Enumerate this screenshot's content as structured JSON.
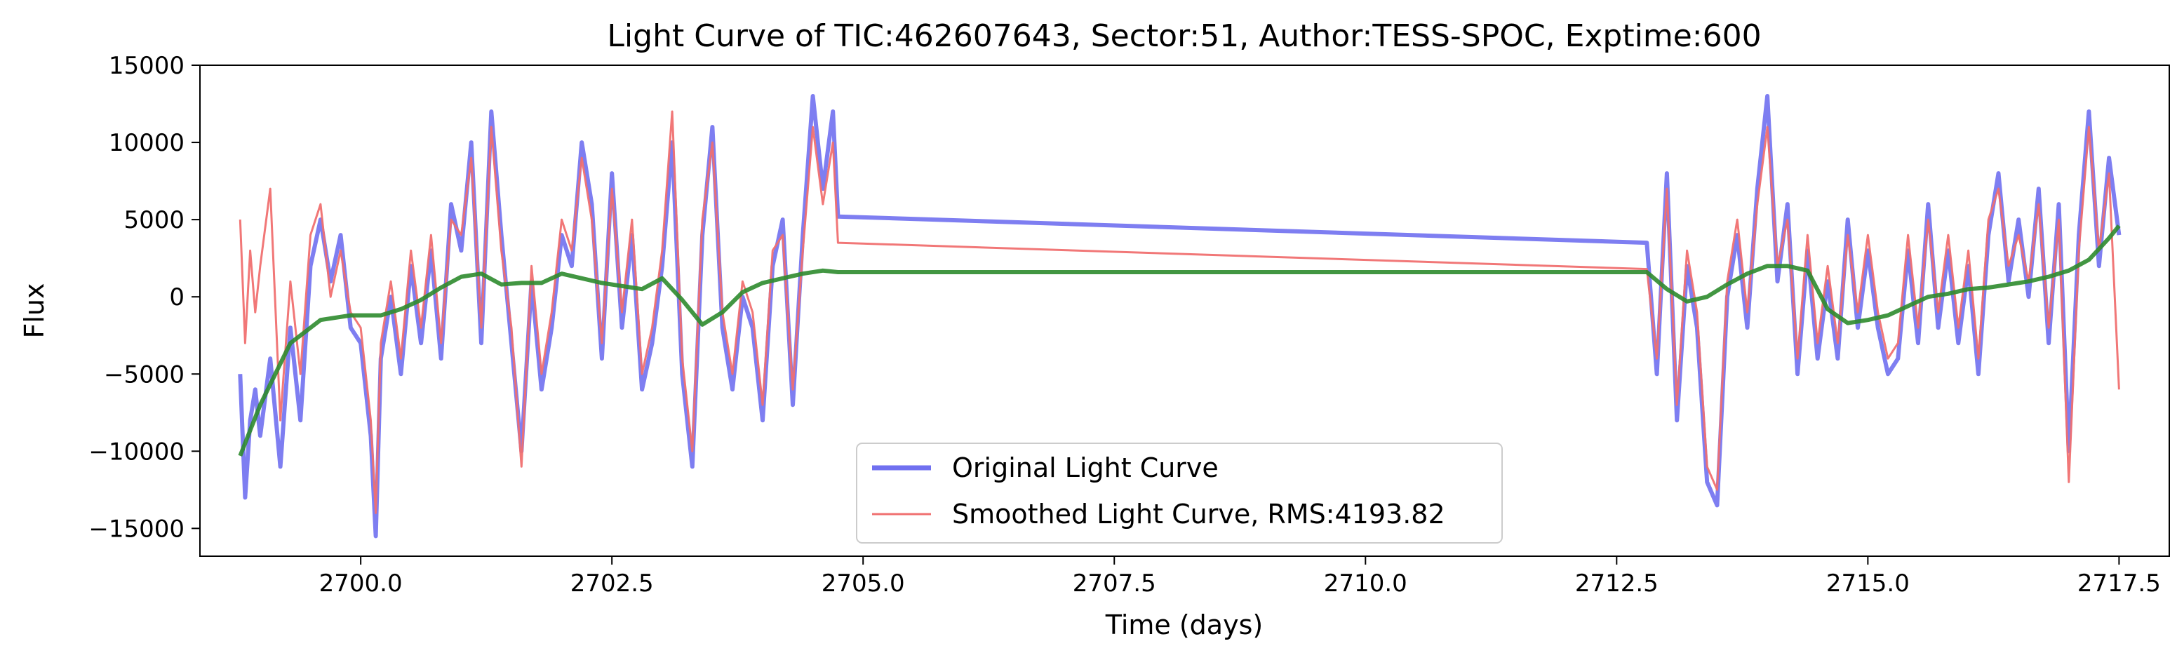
{
  "chart_data": {
    "type": "line",
    "title": "Light Curve of TIC:462607643, Sector:51, Author:TESS-SPOC, Exptime:600",
    "xlabel": "Time (days)",
    "ylabel": "Flux",
    "xlim": [
      2698.4,
      2718.0
    ],
    "ylim": [
      -16800,
      15000
    ],
    "xticks": [
      2700.0,
      2702.5,
      2705.0,
      2707.5,
      2710.0,
      2712.5,
      2715.0,
      2717.5
    ],
    "xtick_labels": [
      "2700.0",
      "2702.5",
      "2705.0",
      "2707.5",
      "2710.0",
      "2712.5",
      "2715.0",
      "2717.5"
    ],
    "yticks": [
      -15000,
      -10000,
      -5000,
      0,
      5000,
      10000,
      15000
    ],
    "ytick_labels": [
      "−15000",
      "−10000",
      "−5000",
      "0",
      "5000",
      "10000",
      "15000"
    ],
    "grid": false,
    "legend": {
      "placement": "lower-center",
      "entries": [
        {
          "label": "Original Light Curve",
          "color": "#7070f0"
        },
        {
          "label": "Smoothed Light Curve, RMS:4193.82",
          "color": "#f07070"
        }
      ]
    },
    "series": [
      {
        "name": "Original Light Curve",
        "color": "#7070f0",
        "x": [
          2698.8,
          2698.85,
          2698.9,
          2698.95,
          2699.0,
          2699.1,
          2699.2,
          2699.3,
          2699.4,
          2699.5,
          2699.6,
          2699.7,
          2699.8,
          2699.9,
          2700.0,
          2700.1,
          2700.15,
          2700.2,
          2700.3,
          2700.4,
          2700.5,
          2700.6,
          2700.7,
          2700.8,
          2700.9,
          2701.0,
          2701.1,
          2701.2,
          2701.3,
          2701.4,
          2701.5,
          2701.6,
          2701.7,
          2701.8,
          2701.9,
          2702.0,
          2702.1,
          2702.2,
          2702.3,
          2702.4,
          2702.5,
          2702.6,
          2702.7,
          2702.8,
          2702.9,
          2703.0,
          2703.1,
          2703.2,
          2703.3,
          2703.4,
          2703.5,
          2703.6,
          2703.7,
          2703.8,
          2703.9,
          2704.0,
          2704.1,
          2704.2,
          2704.3,
          2704.4,
          2704.5,
          2704.6,
          2704.7,
          2704.75,
          2712.8,
          2712.9,
          2713.0,
          2713.1,
          2713.2,
          2713.3,
          2713.4,
          2713.5,
          2713.6,
          2713.7,
          2713.8,
          2713.9,
          2714.0,
          2714.1,
          2714.2,
          2714.3,
          2714.4,
          2714.5,
          2714.6,
          2714.7,
          2714.8,
          2714.9,
          2715.0,
          2715.1,
          2715.2,
          2715.3,
          2715.4,
          2715.5,
          2715.6,
          2715.7,
          2715.8,
          2715.9,
          2716.0,
          2716.1,
          2716.2,
          2716.3,
          2716.4,
          2716.5,
          2716.6,
          2716.7,
          2716.8,
          2716.9,
          2717.0,
          2717.1,
          2717.2,
          2717.3,
          2717.4,
          2717.5
        ],
        "y": [
          -5000,
          -13000,
          -8000,
          -6000,
          -9000,
          -4000,
          -11000,
          -2000,
          -8000,
          2000,
          5000,
          1000,
          4000,
          -2000,
          -3000,
          -9000,
          -15500,
          -4000,
          0,
          -5000,
          2000,
          -3000,
          3000,
          -4000,
          6000,
          3000,
          10000,
          -3000,
          12000,
          4000,
          -3000,
          -10000,
          1000,
          -6000,
          -2000,
          4000,
          2000,
          10000,
          6000,
          -4000,
          8000,
          -2000,
          4000,
          -6000,
          -3000,
          2000,
          10000,
          -5000,
          -11000,
          4000,
          11000,
          -2000,
          -6000,
          0,
          -2000,
          -8000,
          2000,
          5000,
          -7000,
          4000,
          13000,
          7000,
          12000,
          5200,
          3500,
          -5000,
          8000,
          -8000,
          2000,
          -2000,
          -12000,
          -13500,
          0,
          4000,
          -2000,
          7000,
          13000,
          1000,
          6000,
          -5000,
          3000,
          -4000,
          1000,
          -4000,
          5000,
          -2000,
          3000,
          -2000,
          -5000,
          -4000,
          3000,
          -3000,
          6000,
          -2000,
          3000,
          -3000,
          2000,
          -5000,
          4000,
          8000,
          1000,
          5000,
          0,
          7000,
          -3000,
          6000,
          -10000,
          4000,
          12000,
          2000,
          9000,
          4000
        ]
      },
      {
        "name": "Smoothed Light Curve, RMS:4193.82",
        "color": "#f07070",
        "x": [
          2698.8,
          2698.85,
          2698.9,
          2698.95,
          2699.0,
          2699.1,
          2699.2,
          2699.3,
          2699.4,
          2699.5,
          2699.6,
          2699.7,
          2699.8,
          2699.9,
          2700.0,
          2700.1,
          2700.15,
          2700.2,
          2700.3,
          2700.4,
          2700.5,
          2700.6,
          2700.7,
          2700.8,
          2700.9,
          2701.0,
          2701.1,
          2701.2,
          2701.3,
          2701.4,
          2701.5,
          2701.6,
          2701.7,
          2701.8,
          2701.9,
          2702.0,
          2702.1,
          2702.2,
          2702.3,
          2702.4,
          2702.5,
          2702.6,
          2702.7,
          2702.8,
          2702.9,
          2703.0,
          2703.1,
          2703.2,
          2703.3,
          2703.4,
          2703.5,
          2703.6,
          2703.7,
          2703.8,
          2703.9,
          2704.0,
          2704.1,
          2704.2,
          2704.3,
          2704.4,
          2704.5,
          2704.6,
          2704.7,
          2704.75,
          2712.8,
          2712.9,
          2713.0,
          2713.1,
          2713.2,
          2713.3,
          2713.4,
          2713.5,
          2713.6,
          2713.7,
          2713.8,
          2713.9,
          2714.0,
          2714.1,
          2714.2,
          2714.3,
          2714.4,
          2714.5,
          2714.6,
          2714.7,
          2714.8,
          2714.9,
          2715.0,
          2715.1,
          2715.2,
          2715.3,
          2715.4,
          2715.5,
          2715.6,
          2715.7,
          2715.8,
          2715.9,
          2716.0,
          2716.1,
          2716.2,
          2716.3,
          2716.4,
          2716.5,
          2716.6,
          2716.7,
          2716.8,
          2716.9,
          2717.0,
          2717.1,
          2717.2,
          2717.3,
          2717.4,
          2717.5
        ],
        "y": [
          5000,
          -3000,
          3000,
          -1000,
          2000,
          7000,
          -8000,
          1000,
          -5000,
          4000,
          6000,
          0,
          3000,
          -1000,
          -2000,
          -8000,
          -14000,
          -3000,
          1000,
          -4000,
          3000,
          -2000,
          4000,
          -3000,
          5000,
          4000,
          9000,
          -2000,
          11000,
          3000,
          -2000,
          -11000,
          2000,
          -5000,
          -1000,
          5000,
          3000,
          9000,
          5000,
          -3000,
          7000,
          -1000,
          5000,
          -5000,
          -2000,
          3000,
          12000,
          -4000,
          -10000,
          5000,
          10000,
          -1000,
          -5000,
          1000,
          -1000,
          -7000,
          3000,
          4000,
          -6000,
          3000,
          11000,
          6000,
          10000,
          3500,
          1800,
          -4000,
          7000,
          -7000,
          3000,
          -1000,
          -11000,
          -12500,
          1000,
          5000,
          -1000,
          6000,
          11000,
          2000,
          5000,
          -4000,
          4000,
          -3000,
          2000,
          -3000,
          4000,
          -1000,
          4000,
          -1000,
          -4000,
          -3000,
          4000,
          -2000,
          5000,
          -1000,
          4000,
          -2000,
          3000,
          -4000,
          5000,
          7000,
          2000,
          4000,
          1000,
          6000,
          -2000,
          5000,
          -12000,
          3000,
          11000,
          3000,
          8000,
          -6000
        ]
      },
      {
        "name": "",
        "color": "#2e8b2e",
        "x": [
          2698.8,
          2699.0,
          2699.3,
          2699.6,
          2699.9,
          2700.2,
          2700.4,
          2700.6,
          2700.8,
          2701.0,
          2701.2,
          2701.4,
          2701.6,
          2701.8,
          2702.0,
          2702.2,
          2702.4,
          2702.6,
          2702.8,
          2703.0,
          2703.2,
          2703.4,
          2703.6,
          2703.8,
          2704.0,
          2704.2,
          2704.4,
          2704.6,
          2704.75,
          2712.8,
          2713.0,
          2713.2,
          2713.4,
          2713.6,
          2713.8,
          2714.0,
          2714.2,
          2714.4,
          2714.6,
          2714.8,
          2715.0,
          2715.2,
          2715.4,
          2715.6,
          2715.8,
          2716.0,
          2716.2,
          2716.4,
          2716.6,
          2716.8,
          2717.0,
          2717.2,
          2717.4,
          2717.5
        ],
        "y": [
          -10300,
          -7000,
          -3000,
          -1500,
          -1200,
          -1200,
          -800,
          -200,
          600,
          1300,
          1500,
          800,
          900,
          900,
          1500,
          1200,
          900,
          700,
          500,
          1200,
          -200,
          -1800,
          -1000,
          300,
          900,
          1200,
          1500,
          1700,
          1600,
          1600,
          500,
          -300,
          0,
          800,
          1500,
          2000,
          2000,
          1700,
          -800,
          -1700,
          -1500,
          -1200,
          -600,
          0,
          200,
          500,
          600,
          800,
          1000,
          1300,
          1700,
          2400,
          3800,
          4600
        ]
      }
    ]
  }
}
